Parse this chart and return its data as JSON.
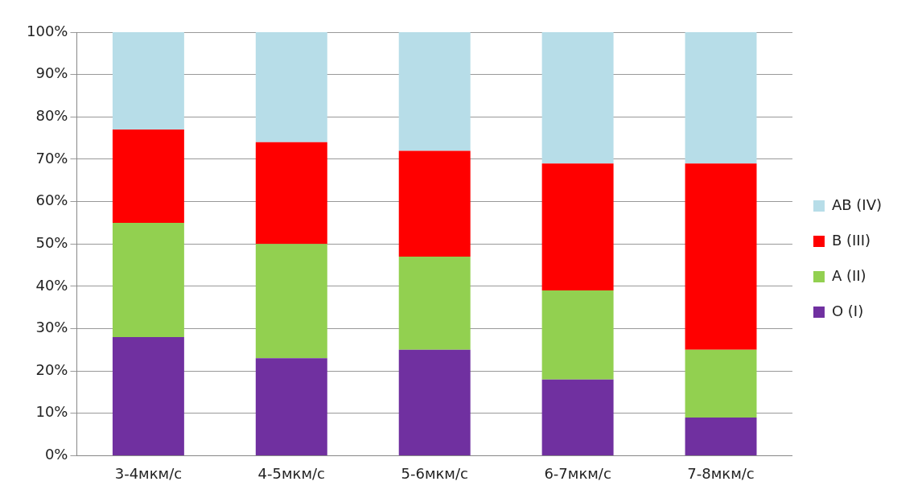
{
  "chart_data": {
    "type": "bar",
    "stacked": true,
    "categories": [
      "3-4мкм/с",
      "4-5мкм/с",
      "5-6мкм/с",
      "6-7мкм/с",
      "7-8мкм/с"
    ],
    "series": [
      {
        "name": "O (I)",
        "color": "#7030a0",
        "values": [
          28,
          23,
          25,
          18,
          9
        ]
      },
      {
        "name": "A (II)",
        "color": "#92d050",
        "values": [
          27,
          27,
          22,
          21,
          16
        ]
      },
      {
        "name": "B (III)",
        "color": "#ff0000",
        "values": [
          22,
          24,
          25,
          30,
          44
        ]
      },
      {
        "name": "AB (IV)",
        "color": "#b7dde8",
        "values": [
          23,
          26,
          28,
          31,
          31
        ]
      }
    ],
    "ylim": [
      0,
      100
    ],
    "yticks": [
      {
        "value": 0,
        "label": "0%"
      },
      {
        "value": 10,
        "label": "10%"
      },
      {
        "value": 20,
        "label": "20%"
      },
      {
        "value": 30,
        "label": "30%"
      },
      {
        "value": 40,
        "label": "40%"
      },
      {
        "value": 50,
        "label": "50%"
      },
      {
        "value": 60,
        "label": "60%"
      },
      {
        "value": 70,
        "label": "70%"
      },
      {
        "value": 80,
        "label": "80%"
      },
      {
        "value": 90,
        "label": "90%"
      },
      {
        "value": 100,
        "label": "100%"
      }
    ],
    "grid": "y",
    "legend": "right"
  }
}
